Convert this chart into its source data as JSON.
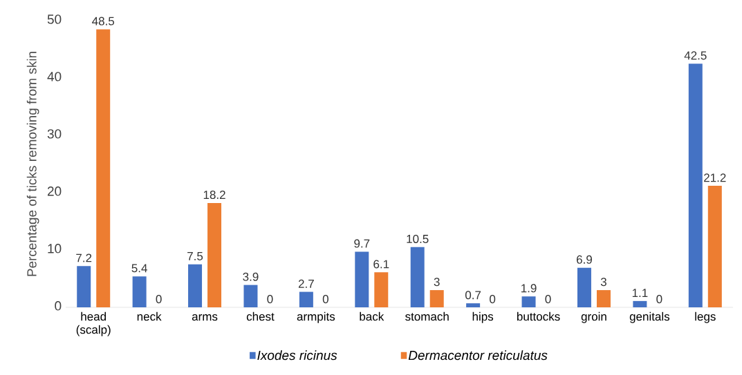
{
  "chart_data": {
    "type": "bar",
    "ylabel": "Percentage of ticks removing from skin",
    "categories": [
      "head (scalp)",
      "neck",
      "arms",
      "chest",
      "armpits",
      "back",
      "stomach",
      "hips",
      "buttocks",
      "groin",
      "genitals",
      "legs"
    ],
    "series": [
      {
        "name": "Ixodes ricinus",
        "color": "#4472c4",
        "values": [
          7.2,
          5.4,
          7.5,
          3.9,
          2.7,
          9.7,
          10.5,
          0.7,
          1.9,
          6.9,
          1.1,
          42.5
        ]
      },
      {
        "name": "Dermacentor reticulatus",
        "color": "#ed7d31",
        "values": [
          48.5,
          0,
          18.2,
          0,
          0,
          6.1,
          3,
          0,
          0,
          3,
          0,
          21.2
        ]
      }
    ],
    "ylim": [
      0,
      50
    ],
    "yticks": [
      0,
      10,
      20,
      30,
      40,
      50
    ],
    "data_labels": true,
    "legend": "bottom",
    "grid": false
  }
}
